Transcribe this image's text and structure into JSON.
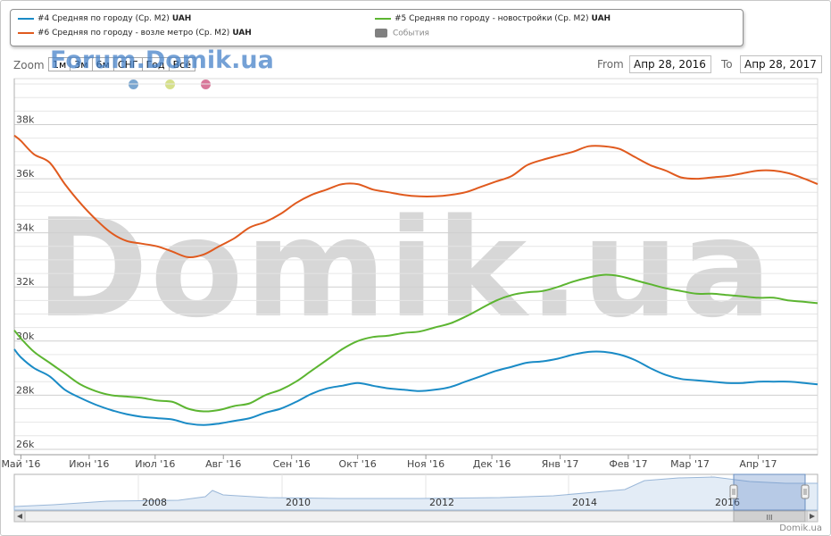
{
  "legend": {
    "items": [
      {
        "label": "#4 Средняя по городу (Ср. М2)",
        "unit": "UAH",
        "color": "#1a8bc6"
      },
      {
        "label": "#5 Средняя по городу - новостройки (Ср. М2)",
        "unit": "UAH",
        "color": "#5cb531"
      },
      {
        "label": "#6 Средняя по городу - возле метро (Ср. М2)",
        "unit": "UAH",
        "color": "#e05a1e"
      }
    ],
    "events_label": "События"
  },
  "toolbar": {
    "zoom_label": "Zoom",
    "zoom_buttons": [
      "1м",
      "3м",
      "6м",
      "СНГ",
      "Год",
      "Всё"
    ],
    "from_label": "From",
    "from_value": "Апр 28, 2016",
    "to_label": "To",
    "to_value": "Апр 28, 2017"
  },
  "watermarks": {
    "top": "Forum.Domik.ua",
    "center": "Domik.ua"
  },
  "markers": {
    "colors": [
      "#7aa6d0",
      "#d6e08a",
      "#d9789a"
    ]
  },
  "credit": "Domik.ua",
  "navigator": {
    "years": [
      "2008",
      "2010",
      "2012",
      "2014",
      "2016"
    ],
    "scroll_grip": "III"
  },
  "chart_data": {
    "type": "line",
    "xlabels": [
      "Май '16",
      "Июн '16",
      "Июл '16",
      "Авг '16",
      "Сен '16",
      "Окт '16",
      "Ноя '16",
      "Дек '16",
      "Янв '17",
      "Фев '17",
      "Мар '17",
      "Апр '17"
    ],
    "ylabels": [
      "26k",
      "28k",
      "30k",
      "32k",
      "34k",
      "36k",
      "38k"
    ],
    "ylim": [
      25800,
      39700
    ],
    "grid": true,
    "legend_position": "top",
    "series": [
      {
        "name": "#6 Средняя по городу - возле метро (Ср. М2) UAH",
        "color": "#e05a1e",
        "x": [
          "2016-04-28",
          "2016-05-01",
          "2016-05-07",
          "2016-05-14",
          "2016-05-21",
          "2016-05-28",
          "2016-06-04",
          "2016-06-11",
          "2016-06-18",
          "2016-06-25",
          "2016-07-02",
          "2016-07-09",
          "2016-07-16",
          "2016-07-23",
          "2016-07-30",
          "2016-08-06",
          "2016-08-13",
          "2016-08-20",
          "2016-08-27",
          "2016-09-03",
          "2016-09-10",
          "2016-09-17",
          "2016-09-24",
          "2016-10-01",
          "2016-10-08",
          "2016-10-15",
          "2016-10-22",
          "2016-10-29",
          "2016-11-05",
          "2016-11-12",
          "2016-11-19",
          "2016-11-26",
          "2016-12-03",
          "2016-12-10",
          "2016-12-17",
          "2016-12-24",
          "2016-12-31",
          "2017-01-07",
          "2017-01-14",
          "2017-01-21",
          "2017-01-28",
          "2017-02-04",
          "2017-02-11",
          "2017-02-18",
          "2017-02-25",
          "2017-03-04",
          "2017-03-11",
          "2017-03-18",
          "2017-03-25",
          "2017-04-01",
          "2017-04-08",
          "2017-04-15",
          "2017-04-22",
          "2017-04-28"
        ],
        "values": [
          37600,
          37400,
          36900,
          36600,
          35800,
          35100,
          34500,
          34000,
          33700,
          33600,
          33500,
          33300,
          33100,
          33200,
          33500,
          33800,
          34200,
          34400,
          34700,
          35100,
          35400,
          35600,
          35800,
          35800,
          35600,
          35500,
          35400,
          35350,
          35350,
          35400,
          35500,
          35700,
          35900,
          36100,
          36500,
          36700,
          36850,
          37000,
          37200,
          37200,
          37100,
          36800,
          36500,
          36300,
          36050,
          36000,
          36050,
          36100,
          36200,
          36300,
          36300,
          36200,
          36000,
          35800
        ]
      },
      {
        "name": "#5 Средняя по городу - новостройки (Ср. М2) UAH",
        "color": "#5cb531",
        "x": [
          "2016-04-28",
          "2016-05-01",
          "2016-05-07",
          "2016-05-14",
          "2016-05-21",
          "2016-05-28",
          "2016-06-04",
          "2016-06-11",
          "2016-06-18",
          "2016-06-25",
          "2016-07-02",
          "2016-07-09",
          "2016-07-16",
          "2016-07-23",
          "2016-07-30",
          "2016-08-06",
          "2016-08-13",
          "2016-08-20",
          "2016-08-27",
          "2016-09-03",
          "2016-09-10",
          "2016-09-17",
          "2016-09-24",
          "2016-10-01",
          "2016-10-08",
          "2016-10-15",
          "2016-10-22",
          "2016-10-29",
          "2016-11-05",
          "2016-11-12",
          "2016-11-19",
          "2016-11-26",
          "2016-12-03",
          "2016-12-10",
          "2016-12-17",
          "2016-12-24",
          "2016-12-31",
          "2017-01-07",
          "2017-01-14",
          "2017-01-21",
          "2017-01-28",
          "2017-02-04",
          "2017-02-11",
          "2017-02-18",
          "2017-02-25",
          "2017-03-04",
          "2017-03-11",
          "2017-03-18",
          "2017-03-25",
          "2017-04-01",
          "2017-04-08",
          "2017-04-15",
          "2017-04-22",
          "2017-04-28"
        ],
        "values": [
          30400,
          30100,
          29600,
          29200,
          28800,
          28400,
          28150,
          28000,
          27950,
          27900,
          27800,
          27750,
          27500,
          27400,
          27450,
          27600,
          27700,
          28000,
          28200,
          28500,
          28900,
          29300,
          29700,
          30000,
          30150,
          30200,
          30300,
          30350,
          30500,
          30650,
          30900,
          31200,
          31500,
          31700,
          31800,
          31850,
          32000,
          32200,
          32350,
          32450,
          32400,
          32250,
          32100,
          31950,
          31850,
          31750,
          31750,
          31700,
          31650,
          31600,
          31600,
          31500,
          31450,
          31400
        ]
      },
      {
        "name": "#4 Средняя по городу (Ср. М2) UAH",
        "color": "#1a8bc6",
        "x": [
          "2016-04-28",
          "2016-05-01",
          "2016-05-07",
          "2016-05-14",
          "2016-05-21",
          "2016-05-28",
          "2016-06-04",
          "2016-06-11",
          "2016-06-18",
          "2016-06-25",
          "2016-07-02",
          "2016-07-09",
          "2016-07-16",
          "2016-07-23",
          "2016-07-30",
          "2016-08-06",
          "2016-08-13",
          "2016-08-20",
          "2016-08-27",
          "2016-09-03",
          "2016-09-10",
          "2016-09-17",
          "2016-09-24",
          "2016-10-01",
          "2016-10-08",
          "2016-10-15",
          "2016-10-22",
          "2016-10-29",
          "2016-11-05",
          "2016-11-12",
          "2016-11-19",
          "2016-11-26",
          "2016-12-03",
          "2016-12-10",
          "2016-12-17",
          "2016-12-24",
          "2016-12-31",
          "2017-01-07",
          "2017-01-14",
          "2017-01-21",
          "2017-01-28",
          "2017-02-04",
          "2017-02-11",
          "2017-02-18",
          "2017-02-25",
          "2017-03-04",
          "2017-03-11",
          "2017-03-18",
          "2017-03-25",
          "2017-04-01",
          "2017-04-08",
          "2017-04-15",
          "2017-04-22",
          "2017-04-28"
        ],
        "values": [
          29700,
          29400,
          29000,
          28700,
          28200,
          27900,
          27650,
          27450,
          27300,
          27200,
          27150,
          27100,
          26950,
          26900,
          26950,
          27050,
          27150,
          27350,
          27500,
          27750,
          28050,
          28250,
          28350,
          28450,
          28350,
          28250,
          28200,
          28150,
          28200,
          28300,
          28500,
          28700,
          28900,
          29050,
          29200,
          29250,
          29350,
          29500,
          29600,
          29600,
          29500,
          29300,
          29000,
          28750,
          28600,
          28550,
          28500,
          28450,
          28450,
          28500,
          28500,
          28500,
          28450,
          28400
        ]
      }
    ]
  }
}
